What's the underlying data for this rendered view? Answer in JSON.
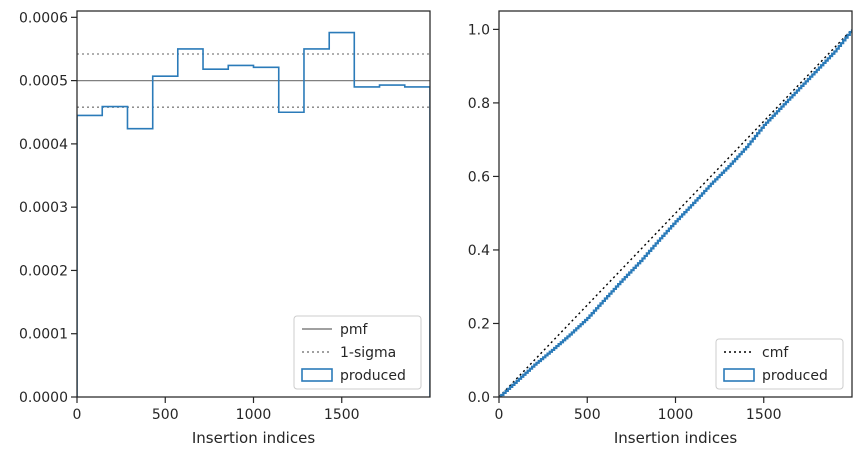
{
  "chart_data": [
    {
      "type": "line",
      "subtype": "step-histogram",
      "title": "",
      "xlabel": "Insertion indices",
      "ylabel": "",
      "xlim": [
        0,
        2000
      ],
      "ylim": [
        0,
        0.00061
      ],
      "xticks": [
        0,
        500,
        1000,
        1500
      ],
      "xtick_labels": [
        "0",
        "500",
        "1000",
        "1500"
      ],
      "yticks": [
        0,
        0.0001,
        0.0002,
        0.0003,
        0.0004,
        0.0005,
        0.0006
      ],
      "ytick_labels": [
        "0.0000",
        "0.0001",
        "0.0002",
        "0.0003",
        "0.0004",
        "0.0005",
        "0.0006"
      ],
      "legend_position": "bottom-right",
      "series": [
        {
          "name": "pmf",
          "style": "solid",
          "color": "#808080",
          "y": 0.0005
        },
        {
          "name": "1-sigma",
          "style": "dotted",
          "color": "#808080",
          "y_values": [
            0.000542,
            0.000458
          ]
        },
        {
          "name": "produced",
          "style": "step",
          "color": "#2b7bb9",
          "bin_edges": [
            0,
            143,
            286,
            429,
            571,
            714,
            857,
            1000,
            1143,
            1286,
            1429,
            1571,
            1714,
            1857,
            2000
          ],
          "values": [
            0.000445,
            0.000459,
            0.000424,
            0.000507,
            0.00055,
            0.000518,
            0.000524,
            0.000521,
            0.00045,
            0.00055,
            0.000576,
            0.00049,
            0.000493,
            0.00049
          ]
        }
      ]
    },
    {
      "type": "line",
      "subtype": "cumulative",
      "title": "",
      "xlabel": "Insertion indices",
      "ylabel": "",
      "xlim": [
        0,
        2000
      ],
      "ylim": [
        0,
        1.05
      ],
      "xticks": [
        0,
        500,
        1000,
        1500
      ],
      "xtick_labels": [
        "0",
        "500",
        "1000",
        "1500"
      ],
      "yticks": [
        0,
        0.2,
        0.4,
        0.6,
        0.8,
        1.0
      ],
      "ytick_labels": [
        "0.0",
        "0.2",
        "0.4",
        "0.6",
        "0.8",
        "1.0"
      ],
      "legend_position": "bottom-right",
      "series": [
        {
          "name": "cmf",
          "style": "dotted",
          "color": "#000000",
          "x": [
            0,
            2000
          ],
          "y": [
            0,
            1.0
          ]
        },
        {
          "name": "produced",
          "style": "step",
          "color": "#2b7bb9",
          "x": [
            0,
            100,
            200,
            300,
            400,
            500,
            600,
            700,
            800,
            900,
            1000,
            1100,
            1200,
            1300,
            1400,
            1500,
            1600,
            1700,
            1800,
            1900,
            2000
          ],
          "y": [
            0,
            0.044,
            0.088,
            0.128,
            0.17,
            0.215,
            0.268,
            0.32,
            0.37,
            0.425,
            0.478,
            0.528,
            0.58,
            0.628,
            0.68,
            0.74,
            0.79,
            0.84,
            0.89,
            0.94,
            1.0
          ]
        }
      ]
    }
  ]
}
